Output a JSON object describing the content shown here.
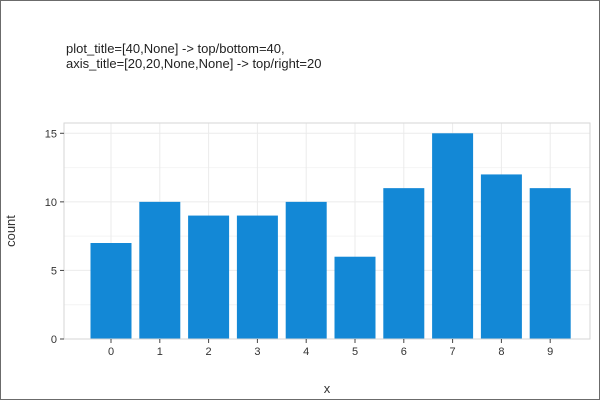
{
  "title": {
    "line1": "plot_title=[40,None] -> top/bottom=40,",
    "line2": "axis_title=[20,20,None,None] -> top/right=20"
  },
  "chart_data": {
    "type": "bar",
    "categories": [
      "0",
      "1",
      "2",
      "3",
      "4",
      "5",
      "6",
      "7",
      "8",
      "9"
    ],
    "values": [
      7,
      10,
      9,
      9,
      10,
      6,
      11,
      15,
      12,
      11
    ],
    "xlabel": "x",
    "ylabel": "count",
    "ylim": [
      0,
      15.75
    ],
    "yticks": [
      0,
      5,
      10,
      15
    ],
    "grid": true,
    "legend": "none",
    "bar_color": "#1388d6",
    "grid_color": "#ebebeb",
    "panel_border_color": "#d6d6d6"
  }
}
